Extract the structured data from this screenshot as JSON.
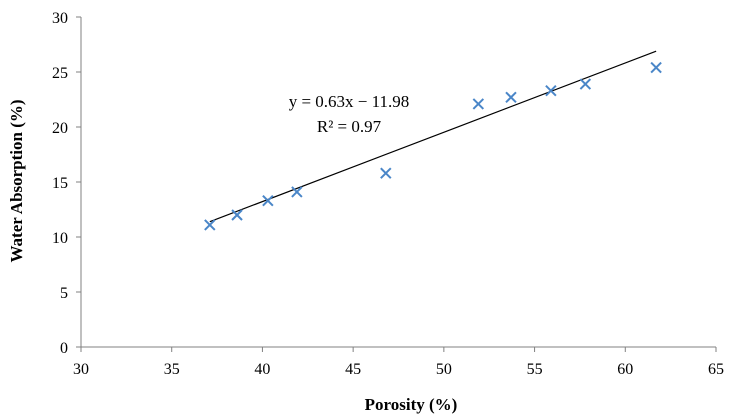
{
  "chart_data": {
    "type": "scatter",
    "title": "",
    "xlabel": "Porosity (%)",
    "ylabel": "Water Absorption (%)",
    "xlim": [
      30,
      65
    ],
    "ylim": [
      0,
      30
    ],
    "xticks": [
      30,
      35,
      40,
      45,
      50,
      55,
      60,
      65
    ],
    "yticks": [
      0,
      5,
      10,
      15,
      20,
      25,
      30
    ],
    "grid": false,
    "marker": "x",
    "marker_color": "#4a86c8",
    "series": [
      {
        "x": [
          37.1,
          38.6,
          40.3,
          41.9,
          46.8,
          51.9,
          53.7,
          55.9,
          57.8,
          61.7
        ],
        "y": [
          11.1,
          12.0,
          13.3,
          14.1,
          15.8,
          22.1,
          22.7,
          23.3,
          23.9,
          25.4
        ]
      }
    ],
    "trendline": {
      "slope": 0.63,
      "intercept": -11.98,
      "x_range": [
        37.1,
        61.7
      ],
      "color": "#000000"
    },
    "annotations": [
      "y = 0.63x − 11.98",
      "R² = 0.97"
    ]
  }
}
